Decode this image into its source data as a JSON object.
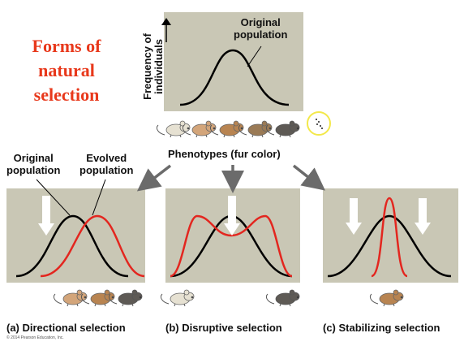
{
  "title_lines": [
    "Forms of",
    "natural",
    "selection"
  ],
  "top": {
    "curve_label_lines": [
      "Original",
      "population"
    ],
    "y_axis_lines": [
      "Frequency of",
      "individuals"
    ],
    "x_axis_label": "Phenotypes (fur color)"
  },
  "panel_a": {
    "label_original_lines": [
      "Original",
      "population"
    ],
    "label_evolved_lines": [
      "Evolved",
      "population"
    ],
    "caption": "(a) Directional selection"
  },
  "panel_b": {
    "caption": "(b) Disruptive selection"
  },
  "panel_c": {
    "caption": "(c) Stabilizing selection"
  },
  "copyright": "© 2014 Pearson Education, Inc.",
  "colors": {
    "panel_bg": "#c9c7b5",
    "original_curve": "#000000",
    "evolved_curve": "#e3261f",
    "title": "#e8381b",
    "arrow": "#6b6b6b"
  }
}
